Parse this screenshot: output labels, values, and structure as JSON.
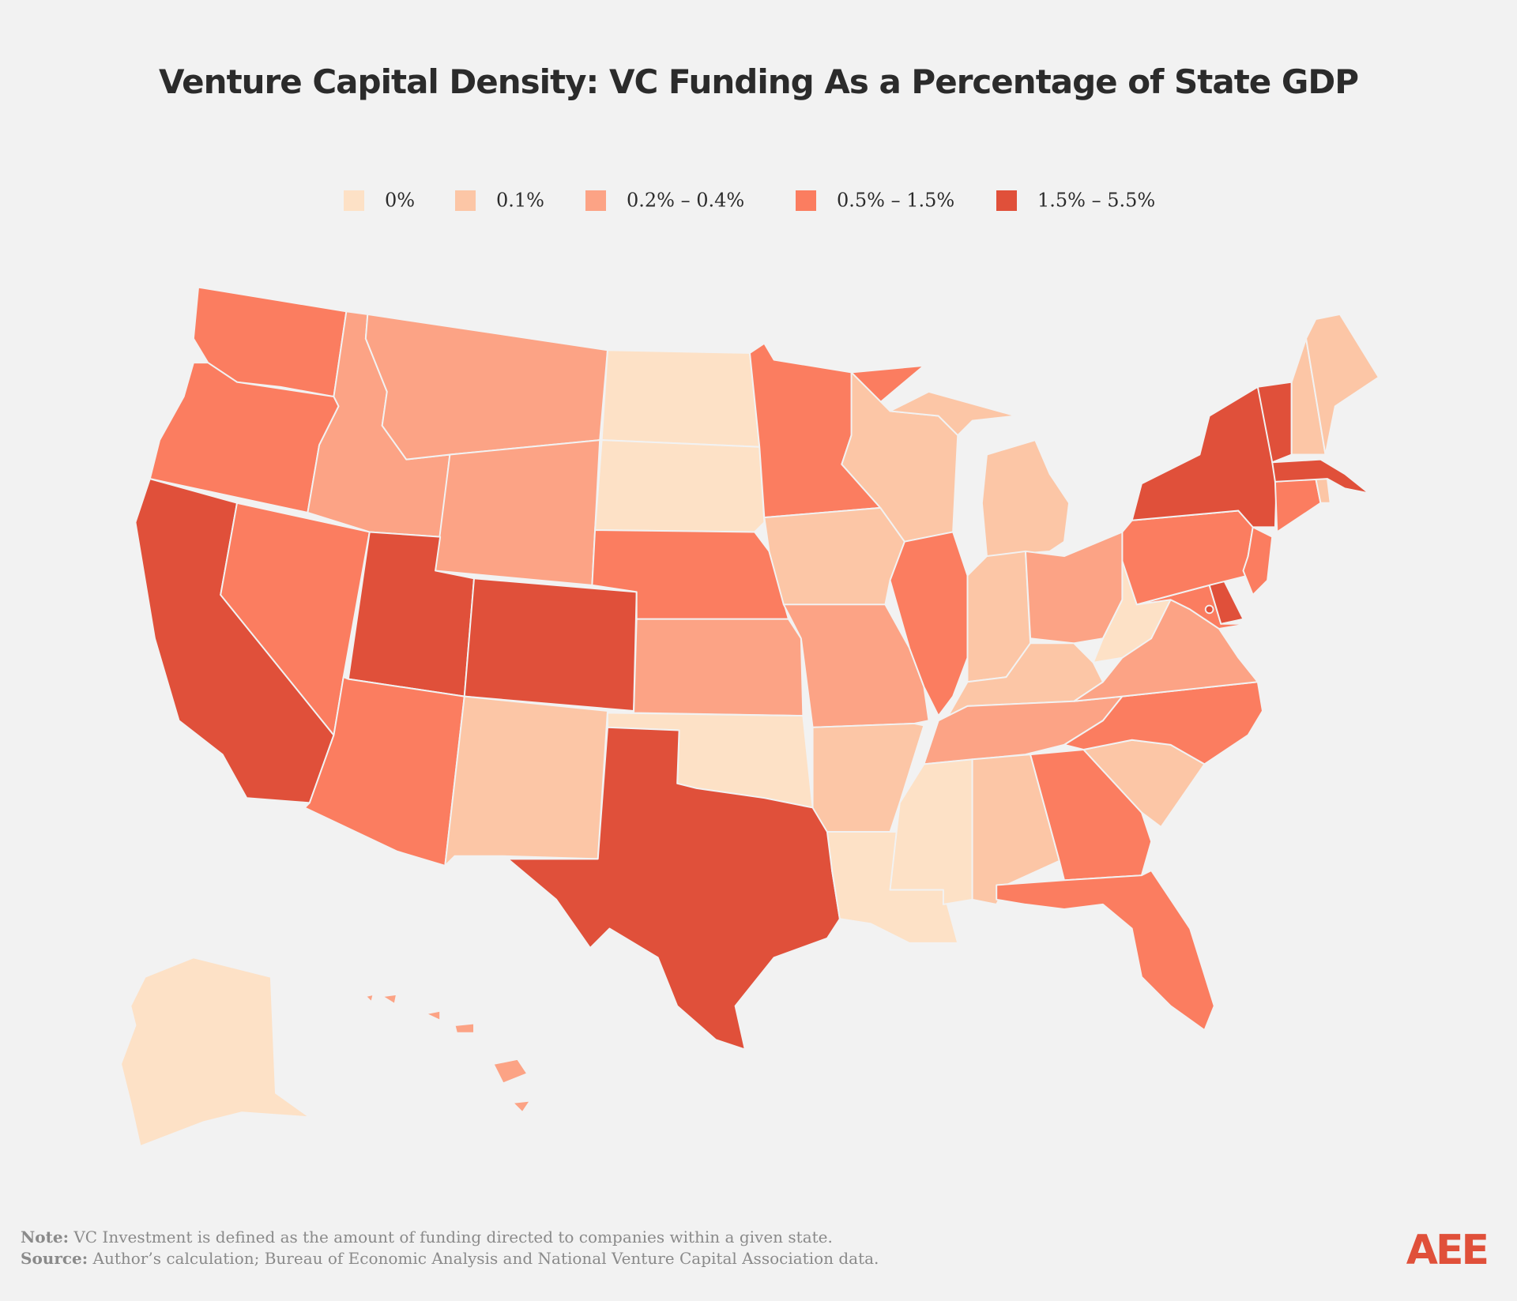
{
  "title": "Venture Capital Density: VC Funding As a Percentage of State GDP",
  "legend": [
    {
      "label": "0%",
      "color": "#fde1c6"
    },
    {
      "label": "0.1%",
      "color": "#fcc6a6"
    },
    {
      "label": "0.2% – 0.4%",
      "color": "#fca385"
    },
    {
      "label": "0.5% – 1.5%",
      "color": "#fb7d60"
    },
    {
      "label": "1.5% – 5.5%",
      "color": "#e0503a"
    }
  ],
  "map": {
    "regions": [
      3,
      3,
      4,
      3,
      2,
      2,
      2,
      4,
      4,
      3,
      1,
      0,
      0,
      3,
      2,
      0,
      4,
      3,
      1,
      2,
      1,
      0,
      1,
      3,
      1,
      1,
      2,
      1,
      2,
      0,
      1,
      3,
      3,
      1,
      3,
      2,
      0,
      3,
      4,
      3,
      3,
      4,
      3,
      1,
      4,
      4,
      1,
      1,
      0,
      2,
      4
    ]
  },
  "note": {
    "label": "Note:",
    "text": "VC Investment is defined as the amount of funding directed to companies within a given state."
  },
  "source": {
    "label": "Source:",
    "text": "Author’s calculation; Bureau of Economic Analysis and National Venture Capital Association data."
  },
  "logo": "AEE"
}
